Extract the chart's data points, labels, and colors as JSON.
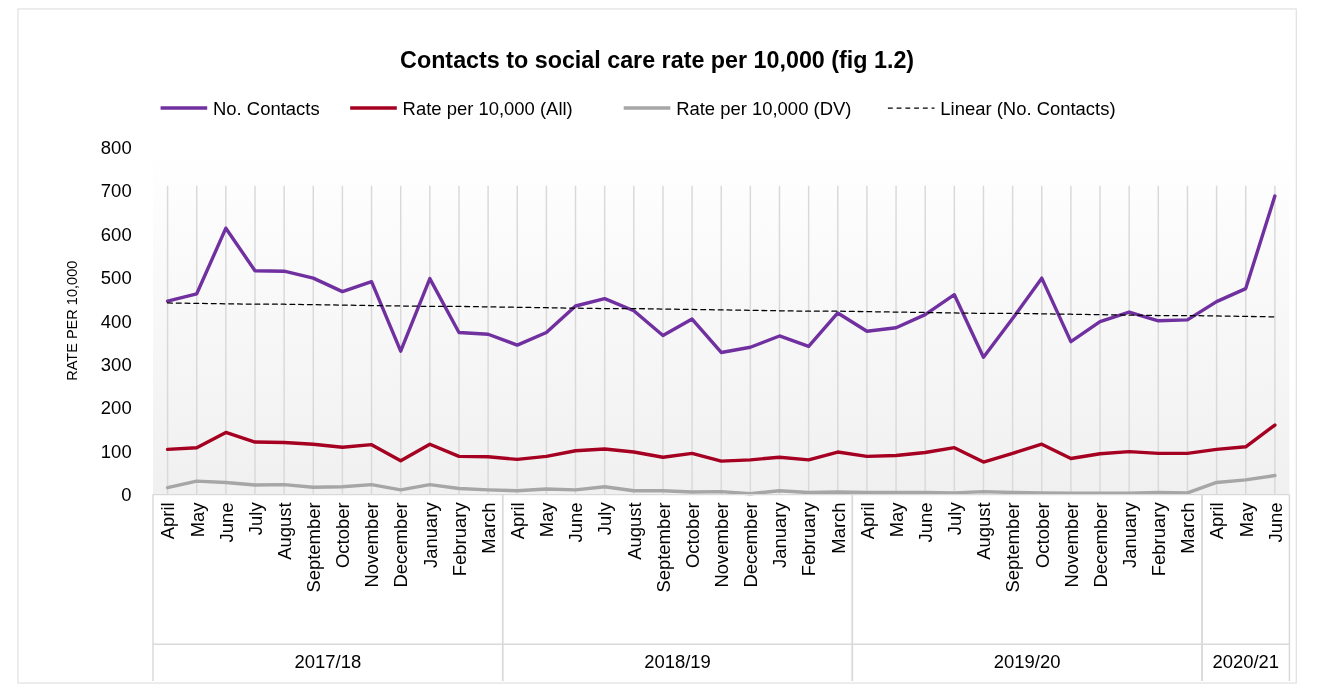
{
  "chart_data": {
    "type": "line",
    "title": "Contacts to social care rate per 10,000 (fig 1.2)",
    "ylabel": "RATE PER 10,000",
    "categories": [
      "April",
      "May",
      "June",
      "July",
      "August",
      "September",
      "October",
      "November",
      "December",
      "January",
      "February",
      "March",
      "April",
      "May",
      "June",
      "July",
      "August",
      "September",
      "October",
      "November",
      "December",
      "January",
      "February",
      "March",
      "April",
      "May",
      "June",
      "July",
      "August",
      "September",
      "October",
      "November",
      "December",
      "January",
      "February",
      "March",
      "April",
      "May",
      "June"
    ],
    "series": [
      {
        "name": "No. Contacts",
        "color": "#7030a0",
        "values": [
          445,
          462,
          613,
          515,
          514,
          498,
          467,
          490,
          330,
          497,
          373,
          369,
          344,
          373,
          434,
          451,
          423,
          366,
          404,
          327,
          339,
          365,
          341,
          418,
          376,
          384,
          414,
          460,
          316,
          405,
          498,
          352,
          398,
          420,
          400,
          402,
          444,
          474,
          687
        ]
      },
      {
        "name": "Rate per 10,000 (All)",
        "color": "#a50021",
        "values": [
          104,
          108,
          143,
          121,
          120,
          116,
          109,
          115,
          78,
          116,
          88,
          87,
          81,
          88,
          101,
          105,
          98,
          86,
          95,
          77,
          80,
          86,
          80,
          98,
          88,
          90,
          97,
          108,
          75,
          95,
          116,
          83,
          94,
          99,
          95,
          95,
          104,
          110,
          160
        ]
      },
      {
        "name": "Rate per 10,000 (DV)",
        "color": "#a6a6a6",
        "values": [
          16,
          31,
          28,
          22,
          23,
          17,
          18,
          23,
          11,
          23,
          14,
          11,
          9,
          13,
          11,
          18,
          9,
          9,
          6,
          7,
          2,
          9,
          5,
          6,
          5,
          5,
          5,
          4,
          7,
          5,
          4,
          3,
          3,
          3,
          5,
          4,
          28,
          34,
          44
        ]
      },
      {
        "name": "Linear (No. Contacts)",
        "color": "#000000",
        "line_style": "dashed",
        "values": [
          441,
          440,
          439,
          438,
          438,
          437,
          436,
          435,
          434,
          433,
          433,
          432,
          431,
          430,
          429,
          428,
          428,
          427,
          426,
          425,
          424,
          423,
          422,
          422,
          421,
          420,
          419,
          418,
          417,
          417,
          416,
          415,
          414,
          413,
          412,
          412,
          411,
          410,
          409
        ]
      }
    ],
    "ylim": [
      0,
      800
    ],
    "yticks": [
      0,
      100,
      200,
      300,
      400,
      500,
      600,
      700,
      800
    ],
    "grid": "x",
    "legend": "top",
    "line_style": "solid",
    "marker": "none",
    "annotations": [
      "2017/18",
      "2018/19",
      "2019/20",
      "2020/21"
    ]
  }
}
